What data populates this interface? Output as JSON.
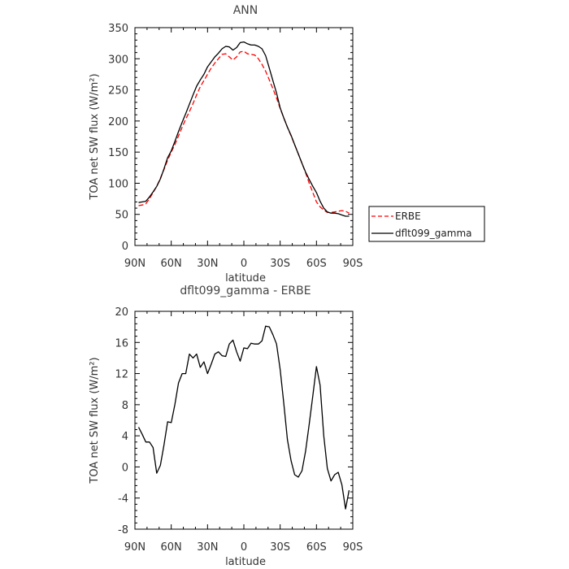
{
  "chart_data": [
    {
      "type": "line",
      "title": "ANN",
      "xlabel": "latitude",
      "ylabel": "TOA net SW flux (W/m²)",
      "xlim": [
        90,
        -90
      ],
      "ylim": [
        0,
        350
      ],
      "x_tick_values": [
        90,
        60,
        30,
        0,
        -30,
        -60,
        -90
      ],
      "x_tick_labels": [
        "90N",
        "60N",
        "30N",
        "0",
        "30S",
        "60S",
        "90S"
      ],
      "y_ticks": [
        0,
        50,
        100,
        150,
        200,
        250,
        300,
        350
      ],
      "legend_position": "right",
      "series": [
        {
          "name": "ERBE",
          "color": "#ff0000",
          "dash": "dashed",
          "x": [
            87,
            84,
            81,
            78,
            75,
            72,
            69,
            66,
            63,
            60,
            57,
            54,
            51,
            48,
            45,
            42,
            39,
            36,
            33,
            30,
            27,
            24,
            21,
            18,
            15,
            12,
            9,
            6,
            3,
            0,
            -3,
            -6,
            -9,
            -12,
            -15,
            -18,
            -21,
            -24,
            -27,
            -30,
            -33,
            -36,
            -39,
            -42,
            -45,
            -48,
            -51,
            -54,
            -57,
            -60,
            -63,
            -66,
            -69,
            -72,
            -75,
            -78,
            -81,
            -84,
            -87
          ],
          "y": [
            64,
            65,
            67,
            75,
            85,
            95,
            108,
            122,
            137,
            150,
            162,
            176,
            190,
            203,
            215,
            228,
            242,
            255,
            265,
            275,
            285,
            293,
            300,
            307,
            308,
            303,
            298,
            303,
            311,
            312,
            308,
            307,
            306,
            300,
            291,
            280,
            266,
            252,
            237,
            220,
            205,
            190,
            176,
            162,
            147,
            132,
            117,
            100,
            85,
            70,
            62,
            57,
            53,
            53,
            54,
            55,
            56,
            55,
            52
          ]
        },
        {
          "name": "dflt099_gamma",
          "color": "#000000",
          "dash": "solid",
          "x": [
            87,
            84,
            81,
            78,
            75,
            72,
            69,
            66,
            63,
            60,
            57,
            54,
            51,
            48,
            45,
            42,
            39,
            36,
            33,
            30,
            27,
            24,
            21,
            18,
            15,
            12,
            9,
            6,
            3,
            0,
            -3,
            -6,
            -9,
            -12,
            -15,
            -18,
            -21,
            -24,
            -27,
            -30,
            -33,
            -36,
            -39,
            -42,
            -45,
            -48,
            -51,
            -54,
            -57,
            -60,
            -63,
            -66,
            -69,
            -72,
            -75,
            -78,
            -81,
            -84,
            -87
          ],
          "y": [
            69,
            70,
            71,
            78,
            86,
            95,
            107,
            123,
            141,
            152,
            167,
            183,
            198,
            212,
            227,
            242,
            256,
            266,
            275,
            287,
            295,
            303,
            309,
            316,
            320,
            319,
            314,
            318,
            326,
            327,
            324,
            322,
            322,
            320,
            316,
            305,
            285,
            265,
            245,
            221,
            205,
            190,
            177,
            162,
            147,
            132,
            118,
            106,
            95,
            85,
            71,
            60,
            54,
            52,
            52,
            51,
            49,
            47,
            47
          ]
        }
      ]
    },
    {
      "type": "line",
      "title": "dflt099_gamma - ERBE",
      "xlabel": "latitude",
      "ylabel": "TOA net SW flux (W/m²)",
      "xlim": [
        90,
        -90
      ],
      "ylim": [
        -8,
        20
      ],
      "x_tick_values": [
        90,
        60,
        30,
        0,
        -30,
        -60,
        -90
      ],
      "x_tick_labels": [
        "90N",
        "60N",
        "30N",
        "0",
        "30S",
        "60S",
        "90S"
      ],
      "y_ticks": [
        -8,
        -4,
        0,
        4,
        8,
        12,
        16,
        20
      ],
      "series": [
        {
          "color": "#000000",
          "x": [
            87,
            84,
            81,
            78,
            75,
            72,
            69,
            66,
            63,
            60,
            57,
            54,
            51,
            48,
            45,
            42,
            39,
            36,
            33,
            30,
            27,
            24,
            21,
            18,
            15,
            12,
            9,
            6,
            3,
            0,
            -3,
            -6,
            -9,
            -12,
            -15,
            -18,
            -21,
            -24,
            -27,
            -30,
            -33,
            -36,
            -39,
            -42,
            -45,
            -48,
            -51,
            -54,
            -57,
            -60,
            -63,
            -66,
            -69,
            -72,
            -75,
            -78,
            -81,
            -84,
            -87
          ],
          "y": [
            5.1,
            4.2,
            3.2,
            3.2,
            2.5,
            -0.8,
            0.2,
            2.8,
            5.8,
            5.7,
            8.0,
            10.8,
            12.0,
            12.0,
            14.5,
            14.0,
            14.5,
            12.8,
            13.5,
            12.0,
            13.2,
            14.5,
            14.8,
            14.3,
            14.2,
            15.8,
            16.3,
            14.8,
            13.6,
            15.3,
            15.2,
            15.9,
            15.8,
            15.8,
            16.2,
            18.1,
            18.0,
            17.0,
            15.8,
            12.5,
            8.2,
            3.5,
            0.8,
            -1.0,
            -1.3,
            -0.5,
            2.0,
            5.5,
            9.2,
            12.9,
            10.5,
            4.0,
            -0.2,
            -1.8,
            -1.0,
            -0.7,
            -2.3,
            -5.4,
            -3.0
          ]
        }
      ]
    }
  ]
}
